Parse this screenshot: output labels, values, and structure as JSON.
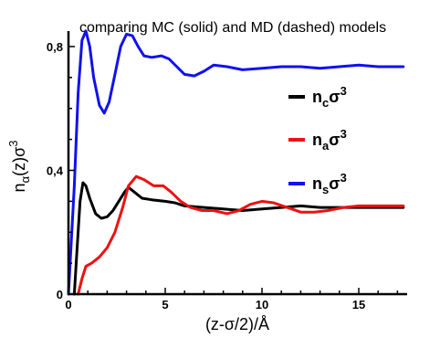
{
  "chart_data": {
    "type": "line",
    "title": "comparing MC (solid) and MD (dashed) models",
    "xlabel": "(z-σ/2)/Å",
    "ylabel": "nα(z)σ3",
    "ylabel_parts": {
      "base": "n",
      "sub": "α",
      "mid": "(z)σ",
      "sup": "3"
    },
    "xlim": [
      0,
      17.5
    ],
    "ylim": [
      0,
      0.85
    ],
    "x_ticks": [
      {
        "value": 0,
        "label": "0"
      },
      {
        "value": 5,
        "label": "5"
      },
      {
        "value": 10,
        "label": "10"
      },
      {
        "value": 15,
        "label": "15"
      }
    ],
    "y_ticks": [
      {
        "value": 0,
        "label": "0"
      },
      {
        "value": 0.4,
        "label": "0,4"
      },
      {
        "value": 0.8,
        "label": "0,8"
      }
    ],
    "grid": false,
    "legend_position": "right",
    "series": [
      {
        "name": "n_cσ^3",
        "label_parts": {
          "base": "n",
          "sub": "c",
          "mid": "σ",
          "sup": "3"
        },
        "color": "#000000",
        "points": [
          [
            0.3,
            0.0
          ],
          [
            0.45,
            0.15
          ],
          [
            0.6,
            0.3
          ],
          [
            0.75,
            0.36
          ],
          [
            0.9,
            0.35
          ],
          [
            1.1,
            0.31
          ],
          [
            1.4,
            0.26
          ],
          [
            1.7,
            0.245
          ],
          [
            2.0,
            0.25
          ],
          [
            2.3,
            0.27
          ],
          [
            2.6,
            0.3
          ],
          [
            2.9,
            0.33
          ],
          [
            3.1,
            0.345
          ],
          [
            3.4,
            0.33
          ],
          [
            3.8,
            0.31
          ],
          [
            4.3,
            0.305
          ],
          [
            5.0,
            0.3
          ],
          [
            5.5,
            0.295
          ],
          [
            6.0,
            0.285
          ],
          [
            7.0,
            0.28
          ],
          [
            8.0,
            0.275
          ],
          [
            9.0,
            0.27
          ],
          [
            10.0,
            0.275
          ],
          [
            11.0,
            0.28
          ],
          [
            12.0,
            0.285
          ],
          [
            13.0,
            0.28
          ],
          [
            14.0,
            0.28
          ],
          [
            15.0,
            0.28
          ],
          [
            16.0,
            0.28
          ],
          [
            17.3,
            0.28
          ]
        ]
      },
      {
        "name": "n_aσ^3",
        "label_parts": {
          "base": "n",
          "sub": "a",
          "mid": "σ",
          "sup": "3"
        },
        "color": "#ee1111",
        "points": [
          [
            0.5,
            0.0
          ],
          [
            0.7,
            0.05
          ],
          [
            0.9,
            0.09
          ],
          [
            1.2,
            0.1
          ],
          [
            1.6,
            0.12
          ],
          [
            2.0,
            0.15
          ],
          [
            2.4,
            0.2
          ],
          [
            2.8,
            0.28
          ],
          [
            3.1,
            0.35
          ],
          [
            3.5,
            0.38
          ],
          [
            3.9,
            0.37
          ],
          [
            4.4,
            0.35
          ],
          [
            4.9,
            0.35
          ],
          [
            5.3,
            0.33
          ],
          [
            5.8,
            0.3
          ],
          [
            6.3,
            0.28
          ],
          [
            6.9,
            0.27
          ],
          [
            7.5,
            0.27
          ],
          [
            8.2,
            0.26
          ],
          [
            8.8,
            0.27
          ],
          [
            9.4,
            0.29
          ],
          [
            10.0,
            0.3
          ],
          [
            10.6,
            0.295
          ],
          [
            11.3,
            0.28
          ],
          [
            12.0,
            0.265
          ],
          [
            12.7,
            0.265
          ],
          [
            13.4,
            0.27
          ],
          [
            14.2,
            0.28
          ],
          [
            15.0,
            0.285
          ],
          [
            16.0,
            0.285
          ],
          [
            17.3,
            0.285
          ]
        ]
      },
      {
        "name": "n_sσ^3",
        "label_parts": {
          "base": "n",
          "sub": "s",
          "mid": "σ",
          "sup": "3"
        },
        "color": "#1111ee",
        "points": [
          [
            0.0,
            0.0
          ],
          [
            0.3,
            0.35
          ],
          [
            0.5,
            0.65
          ],
          [
            0.7,
            0.82
          ],
          [
            0.9,
            0.85
          ],
          [
            1.1,
            0.8
          ],
          [
            1.3,
            0.7
          ],
          [
            1.6,
            0.61
          ],
          [
            1.85,
            0.585
          ],
          [
            2.1,
            0.62
          ],
          [
            2.4,
            0.71
          ],
          [
            2.7,
            0.8
          ],
          [
            3.0,
            0.84
          ],
          [
            3.3,
            0.835
          ],
          [
            3.6,
            0.8
          ],
          [
            3.9,
            0.77
          ],
          [
            4.3,
            0.765
          ],
          [
            4.8,
            0.77
          ],
          [
            5.2,
            0.76
          ],
          [
            5.6,
            0.735
          ],
          [
            6.0,
            0.71
          ],
          [
            6.5,
            0.705
          ],
          [
            7.0,
            0.72
          ],
          [
            7.5,
            0.74
          ],
          [
            8.2,
            0.735
          ],
          [
            9.0,
            0.725
          ],
          [
            10.0,
            0.73
          ],
          [
            11.0,
            0.735
          ],
          [
            12.0,
            0.735
          ],
          [
            13.0,
            0.73
          ],
          [
            14.0,
            0.735
          ],
          [
            15.0,
            0.74
          ],
          [
            16.0,
            0.735
          ],
          [
            17.3,
            0.735
          ]
        ]
      }
    ]
  }
}
